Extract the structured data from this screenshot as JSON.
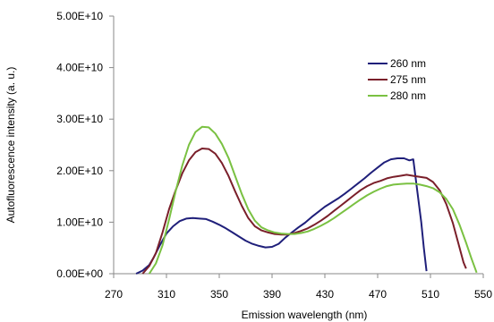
{
  "chart_data": {
    "type": "line",
    "xlabel": "Emission wavelength (nm)",
    "ylabel": "Autofluorescence intensity (a. u.)",
    "xlim": [
      270,
      550
    ],
    "ylim": [
      0,
      50000000000
    ],
    "x_ticks": [
      270,
      310,
      350,
      390,
      430,
      470,
      510,
      550
    ],
    "y_ticks": [
      0,
      10000000000,
      20000000000,
      30000000000,
      40000000000,
      50000000000
    ],
    "y_tick_labels": [
      "0.00E+00",
      "1.00E+10",
      "2.00E+10",
      "3.00E+10",
      "4.00E+10",
      "5.00E+10"
    ],
    "grid": false,
    "legend_position": "top-right",
    "series": [
      {
        "name": "260 nm",
        "color": "#1f1f7a",
        "points": [
          [
            287,
            0.0
          ],
          [
            292,
            600000000.0
          ],
          [
            297,
            1700000000.0
          ],
          [
            300,
            3000000000.0
          ],
          [
            305,
            5500000000.0
          ],
          [
            310,
            7800000000.0
          ],
          [
            315,
            9200000000.0
          ],
          [
            320,
            10200000000.0
          ],
          [
            325,
            10700000000.0
          ],
          [
            330,
            10800000000.0
          ],
          [
            335,
            10700000000.0
          ],
          [
            340,
            10600000000.0
          ],
          [
            345,
            10100000000.0
          ],
          [
            350,
            9500000000.0
          ],
          [
            355,
            8800000000.0
          ],
          [
            360,
            8000000000.0
          ],
          [
            365,
            7200000000.0
          ],
          [
            370,
            6400000000.0
          ],
          [
            375,
            5800000000.0
          ],
          [
            380,
            5400000000.0
          ],
          [
            385,
            5100000000.0
          ],
          [
            390,
            5200000000.0
          ],
          [
            395,
            5800000000.0
          ],
          [
            400,
            7000000000.0
          ],
          [
            405,
            8000000000.0
          ],
          [
            410,
            9000000000.0
          ],
          [
            415,
            9900000000.0
          ],
          [
            420,
            11000000000.0
          ],
          [
            425,
            12000000000.0
          ],
          [
            430,
            13000000000.0
          ],
          [
            435,
            13800000000.0
          ],
          [
            440,
            14600000000.0
          ],
          [
            445,
            15500000000.0
          ],
          [
            450,
            16500000000.0
          ],
          [
            455,
            17500000000.0
          ],
          [
            460,
            18500000000.0
          ],
          [
            465,
            19600000000.0
          ],
          [
            470,
            20600000000.0
          ],
          [
            475,
            21600000000.0
          ],
          [
            480,
            22200000000.0
          ],
          [
            485,
            22400000000.0
          ],
          [
            490,
            22400000000.0
          ],
          [
            494,
            22000000000.0
          ],
          [
            497,
            22200000000.0
          ],
          [
            500,
            16000000000.0
          ],
          [
            503,
            10000000000.0
          ],
          [
            505,
            5000000000.0
          ],
          [
            507,
            500000000.0
          ]
        ]
      },
      {
        "name": "275 nm",
        "color": "#7a1f2a",
        "points": [
          [
            292,
            0.0
          ],
          [
            297,
            1500000000.0
          ],
          [
            302,
            4000000000.0
          ],
          [
            307,
            8000000000.0
          ],
          [
            312,
            12500000000.0
          ],
          [
            317,
            16200000000.0
          ],
          [
            322,
            19500000000.0
          ],
          [
            327,
            22000000000.0
          ],
          [
            332,
            23600000000.0
          ],
          [
            337,
            24300000000.0
          ],
          [
            342,
            24200000000.0
          ],
          [
            347,
            23300000000.0
          ],
          [
            352,
            21500000000.0
          ],
          [
            357,
            19000000000.0
          ],
          [
            362,
            16000000000.0
          ],
          [
            367,
            13200000000.0
          ],
          [
            372,
            10800000000.0
          ],
          [
            377,
            9200000000.0
          ],
          [
            382,
            8400000000.0
          ],
          [
            387,
            8000000000.0
          ],
          [
            392,
            7700000000.0
          ],
          [
            397,
            7600000000.0
          ],
          [
            402,
            7600000000.0
          ],
          [
            407,
            7900000000.0
          ],
          [
            412,
            8300000000.0
          ],
          [
            417,
            8800000000.0
          ],
          [
            422,
            9500000000.0
          ],
          [
            427,
            10300000000.0
          ],
          [
            432,
            11200000000.0
          ],
          [
            437,
            12200000000.0
          ],
          [
            442,
            13200000000.0
          ],
          [
            447,
            14200000000.0
          ],
          [
            452,
            15200000000.0
          ],
          [
            457,
            16200000000.0
          ],
          [
            462,
            17000000000.0
          ],
          [
            467,
            17600000000.0
          ],
          [
            472,
            18000000000.0
          ],
          [
            477,
            18500000000.0
          ],
          [
            482,
            18800000000.0
          ],
          [
            487,
            19000000000.0
          ],
          [
            492,
            19200000000.0
          ],
          [
            497,
            19000000000.0
          ],
          [
            502,
            18800000000.0
          ],
          [
            507,
            18600000000.0
          ],
          [
            512,
            17800000000.0
          ],
          [
            517,
            16200000000.0
          ],
          [
            522,
            13500000000.0
          ],
          [
            527,
            9800000000.0
          ],
          [
            531,
            6000000000.0
          ],
          [
            535,
            2200000000.0
          ],
          [
            537,
            1000000000.0
          ]
        ]
      },
      {
        "name": "280 nm",
        "color": "#7ac142",
        "points": [
          [
            297,
            0.0
          ],
          [
            302,
            2000000000.0
          ],
          [
            307,
            5500000000.0
          ],
          [
            312,
            10500000000.0
          ],
          [
            317,
            16000000000.0
          ],
          [
            322,
            21000000000.0
          ],
          [
            327,
            25000000000.0
          ],
          [
            332,
            27500000000.0
          ],
          [
            337,
            28500000000.0
          ],
          [
            342,
            28400000000.0
          ],
          [
            347,
            27200000000.0
          ],
          [
            352,
            25200000000.0
          ],
          [
            357,
            22500000000.0
          ],
          [
            362,
            19000000000.0
          ],
          [
            367,
            15500000000.0
          ],
          [
            372,
            12500000000.0
          ],
          [
            377,
            10300000000.0
          ],
          [
            382,
            9000000000.0
          ],
          [
            387,
            8400000000.0
          ],
          [
            392,
            8000000000.0
          ],
          [
            397,
            7800000000.0
          ],
          [
            402,
            7700000000.0
          ],
          [
            407,
            7700000000.0
          ],
          [
            412,
            7900000000.0
          ],
          [
            417,
            8200000000.0
          ],
          [
            422,
            8700000000.0
          ],
          [
            427,
            9300000000.0
          ],
          [
            432,
            10000000000.0
          ],
          [
            437,
            10800000000.0
          ],
          [
            442,
            11700000000.0
          ],
          [
            447,
            12600000000.0
          ],
          [
            452,
            13500000000.0
          ],
          [
            457,
            14400000000.0
          ],
          [
            462,
            15200000000.0
          ],
          [
            467,
            15900000000.0
          ],
          [
            472,
            16500000000.0
          ],
          [
            477,
            17000000000.0
          ],
          [
            482,
            17300000000.0
          ],
          [
            487,
            17400000000.0
          ],
          [
            492,
            17500000000.0
          ],
          [
            497,
            17500000000.0
          ],
          [
            502,
            17300000000.0
          ],
          [
            507,
            17000000000.0
          ],
          [
            512,
            16600000000.0
          ],
          [
            517,
            15800000000.0
          ],
          [
            522,
            14500000000.0
          ],
          [
            527,
            12500000000.0
          ],
          [
            532,
            9500000000.0
          ],
          [
            537,
            6000000000.0
          ],
          [
            541,
            3000000000.0
          ],
          [
            545,
            200000000.0
          ]
        ]
      }
    ]
  }
}
